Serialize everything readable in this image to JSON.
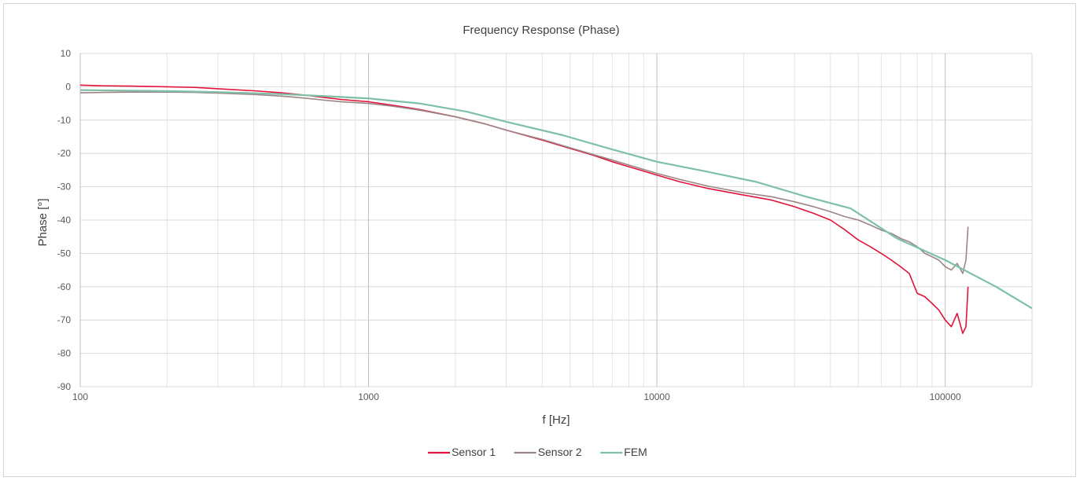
{
  "chart_data": {
    "type": "line",
    "title": "Frequency Response (Phase)",
    "xlabel": "f [Hz]",
    "ylabel": "Phase [°]",
    "x_scale": "log",
    "xlim": [
      100,
      200000
    ],
    "ylim": [
      -90,
      10
    ],
    "x_ticks": [
      {
        "value": 100,
        "label": "100"
      },
      {
        "value": 1000,
        "label": "1000"
      },
      {
        "value": 10000,
        "label": "10000"
      },
      {
        "value": 100000,
        "label": "100000"
      }
    ],
    "y_ticks": [
      {
        "value": 10,
        "label": "10"
      },
      {
        "value": 0,
        "label": "0"
      },
      {
        "value": -10,
        "label": "-10"
      },
      {
        "value": -20,
        "label": "-20"
      },
      {
        "value": -30,
        "label": "-30"
      },
      {
        "value": -40,
        "label": "-40"
      },
      {
        "value": -50,
        "label": "-50"
      },
      {
        "value": -60,
        "label": "-60"
      },
      {
        "value": -70,
        "label": "-70"
      },
      {
        "value": -80,
        "label": "-80"
      },
      {
        "value": -90,
        "label": "-90"
      }
    ],
    "grid": true,
    "legend_position": "bottom",
    "series": [
      {
        "name": "Sensor 1",
        "color": "#e0143c",
        "x": [
          100,
          120,
          150,
          200,
          250,
          300,
          400,
          500,
          600,
          700,
          800,
          1000,
          1200,
          1500,
          2000,
          2500,
          3000,
          4000,
          5000,
          6000,
          7000,
          8000,
          10000,
          12000,
          15000,
          20000,
          25000,
          30000,
          35000,
          40000,
          45000,
          50000,
          55000,
          60000,
          65000,
          70000,
          75000,
          80000,
          85000,
          90000,
          95000,
          100000,
          105000,
          110000,
          115000,
          118000,
          120000
        ],
        "y": [
          0.5,
          0.3,
          0.2,
          0,
          -0.2,
          -0.6,
          -1.2,
          -1.8,
          -2.5,
          -3.2,
          -3.8,
          -4.5,
          -5.5,
          -6.8,
          -9,
          -11,
          -13,
          -16,
          -18.5,
          -20.5,
          -22.5,
          -24,
          -26.5,
          -28.5,
          -30.5,
          -32.5,
          -34,
          -36,
          -38,
          -40,
          -43,
          -46,
          -48,
          -50,
          -52,
          -54,
          -56,
          -62,
          -63,
          -65,
          -67,
          -70,
          -72,
          -68,
          -74,
          -72,
          -60
        ]
      },
      {
        "name": "Sensor 2",
        "color": "#9b8585",
        "x": [
          100,
          120,
          150,
          200,
          250,
          300,
          400,
          500,
          600,
          700,
          800,
          1000,
          1200,
          1500,
          2000,
          2500,
          3000,
          4000,
          5000,
          6000,
          7000,
          8000,
          10000,
          12000,
          15000,
          20000,
          25000,
          30000,
          35000,
          40000,
          45000,
          50000,
          55000,
          60000,
          65000,
          70000,
          75000,
          80000,
          85000,
          90000,
          95000,
          100000,
          105000,
          110000,
          115000,
          118000,
          120000
        ],
        "y": [
          -1.8,
          -1.7,
          -1.6,
          -1.6,
          -1.7,
          -1.9,
          -2.3,
          -2.8,
          -3.4,
          -4,
          -4.5,
          -5,
          -5.8,
          -7,
          -9,
          -11,
          -13,
          -15.8,
          -18.3,
          -20.3,
          -22,
          -23.5,
          -26,
          -27.8,
          -29.8,
          -31.8,
          -33,
          -34.5,
          -36,
          -37.5,
          -39,
          -40,
          -41.5,
          -43,
          -44,
          -45.5,
          -46.5,
          -48,
          -50,
          -51,
          -52,
          -54,
          -55,
          -53,
          -56,
          -52,
          -42
        ]
      },
      {
        "name": "FEM",
        "color": "#7fbfa8",
        "x": [
          100,
          200,
          300,
          500,
          700,
          1000,
          1500,
          2200,
          3000,
          4700,
          6800,
          10000,
          15000,
          22000,
          33000,
          47000,
          68000,
          100000,
          150000,
          200000
        ],
        "y": [
          -1,
          -1.3,
          -1.6,
          -2.2,
          -2.8,
          -3.5,
          -5,
          -7.5,
          -10.5,
          -14.5,
          -18.5,
          -22.5,
          -25.5,
          -28.5,
          -33,
          -36.5,
          -45.5,
          -52,
          -60,
          -66.5
        ]
      }
    ]
  }
}
